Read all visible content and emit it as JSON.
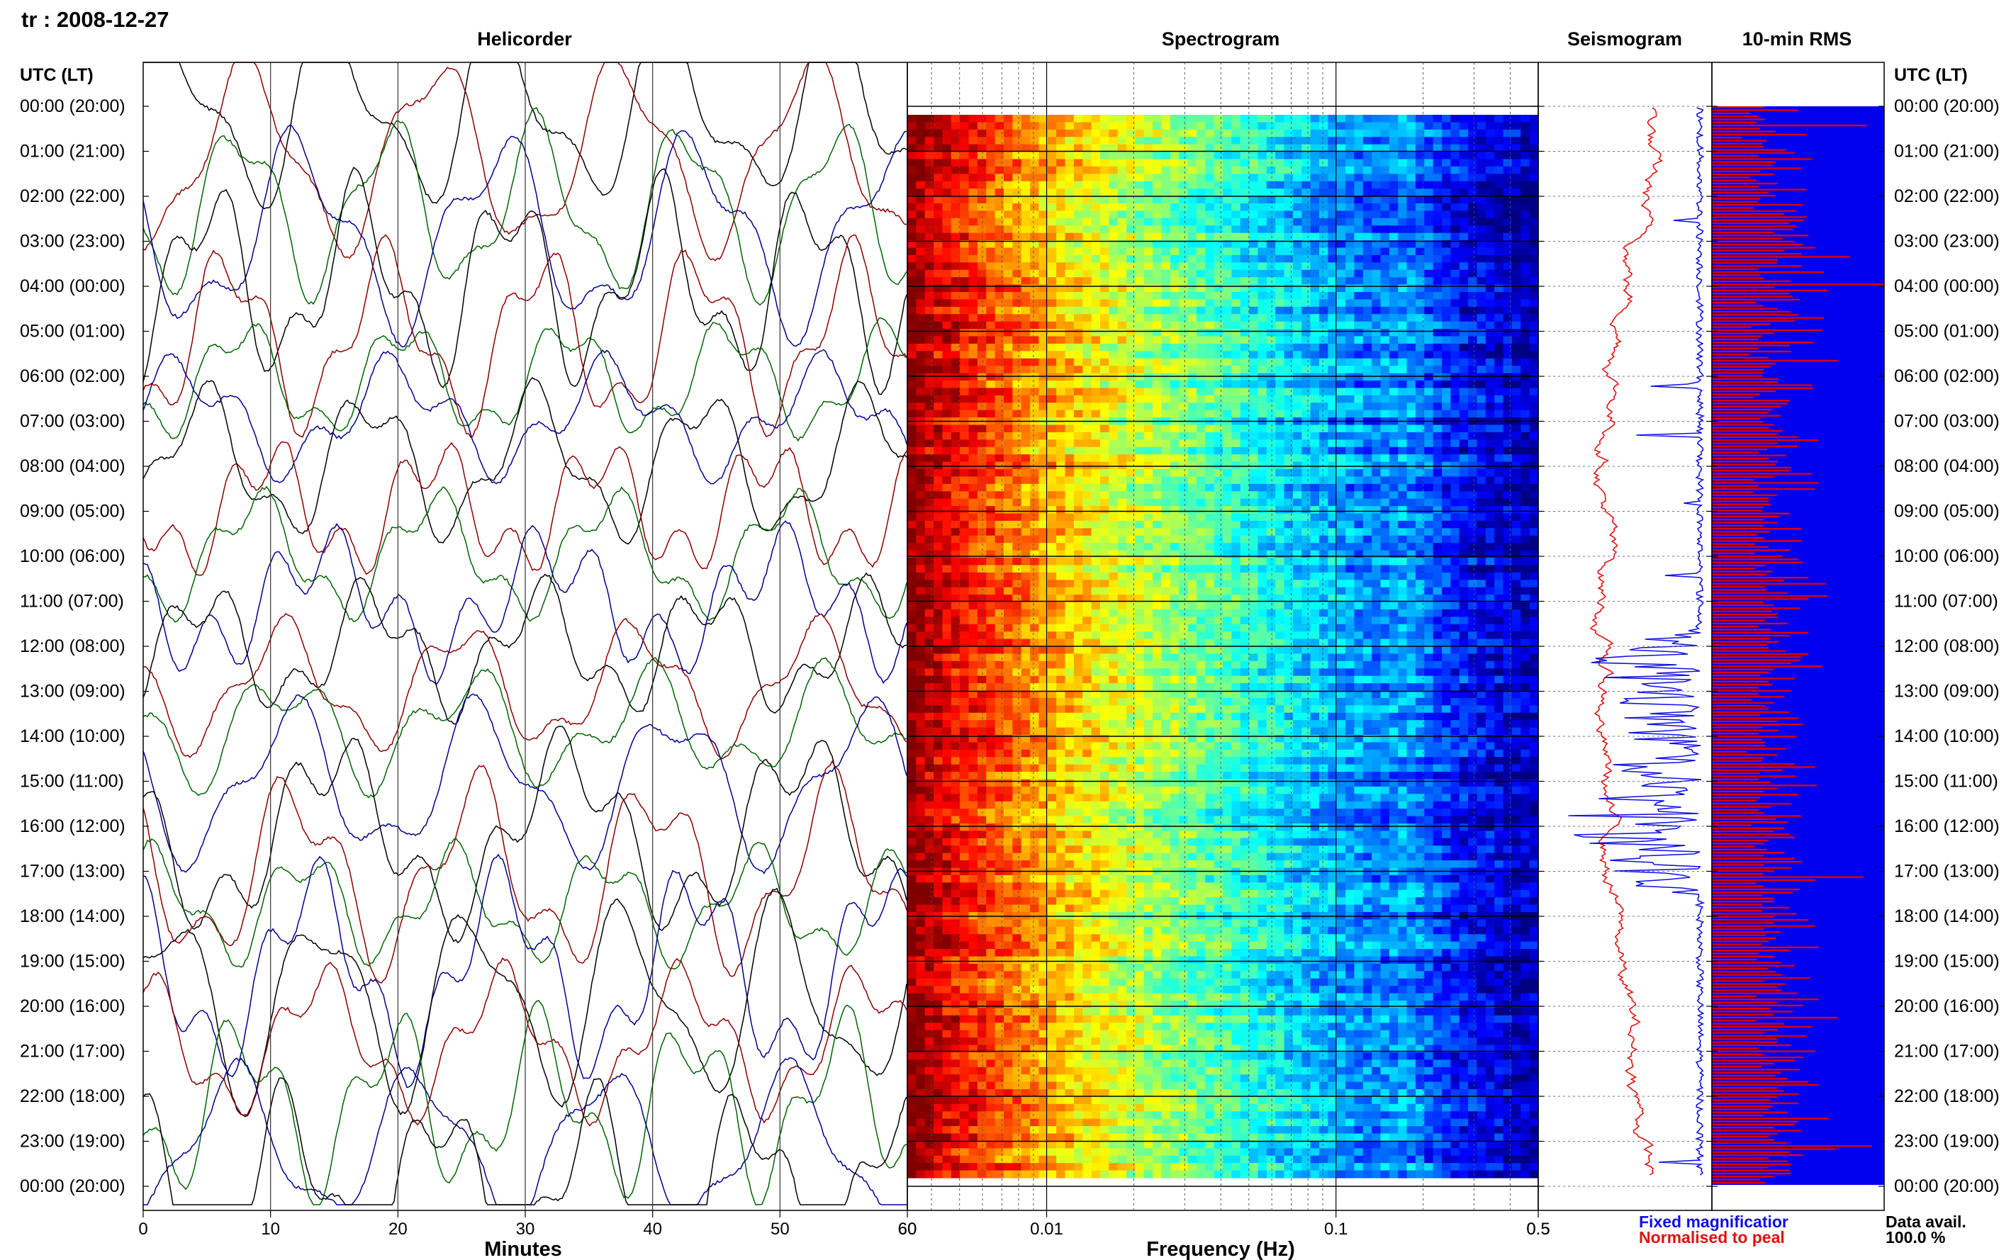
{
  "title": "tr : 2008-12-27",
  "panels": {
    "helicorder": "Helicorder",
    "spectrogram": "Spectrogram",
    "seismogram": "Seismogram",
    "rms": "10-min RMS"
  },
  "time_axis_label_left": "UTC (LT)",
  "time_axis_label_right": "UTC (LT)",
  "hour_labels": [
    "00:00 (20:00)",
    "01:00 (21:00)",
    "02:00 (22:00)",
    "03:00 (23:00)",
    "04:00 (00:00)",
    "05:00 (01:00)",
    "06:00 (02:00)",
    "07:00 (03:00)",
    "08:00 (04:00)",
    "09:00 (05:00)",
    "10:00 (06:00)",
    "11:00 (07:00)",
    "12:00 (08:00)",
    "13:00 (09:00)",
    "14:00 (10:00)",
    "15:00 (11:00)",
    "16:00 (12:00)",
    "17:00 (13:00)",
    "18:00 (14:00)",
    "19:00 (15:00)",
    "20:00 (16:00)",
    "21:00 (17:00)",
    "22:00 (18:00)",
    "23:00 (19:00)",
    "00:00 (20:00)"
  ],
  "legend": {
    "fixed": "Fixed magnificatior",
    "normalised": "Normalised to peal",
    "fixed_color": "#1010e0",
    "normalised_color": "#e01010"
  },
  "data_avail": {
    "label": "Data avail.",
    "value": "100.0 %"
  },
  "colors": {
    "heli_traces": [
      "#000000",
      "#8b0000",
      "#006400",
      "#00008b"
    ],
    "rms_bar": "#e00000",
    "rms_bg": "#0000ee"
  },
  "chart_data": [
    {
      "type": "line",
      "panel": "Helicorder",
      "xlabel": "Minutes",
      "x_ticks": [
        "0",
        "10",
        "20",
        "30",
        "40",
        "50",
        "60"
      ],
      "xlim": [
        0,
        60
      ],
      "rows": 24
    },
    {
      "type": "heatmap",
      "panel": "Spectrogram",
      "xlabel": "Frequency (Hz)",
      "x_scale": "log",
      "x_ticks": [
        "0.01",
        "0.1",
        "0.5"
      ],
      "left_tick_label": "60",
      "xlim": [
        0.0033,
        0.5
      ],
      "colormap": "jet"
    },
    {
      "type": "line",
      "panel": "Seismogram",
      "x_ticks": [
        "0.5"
      ],
      "series": [
        {
          "name": "Fixed magnificatior",
          "color": "#1010e0"
        },
        {
          "name": "Normalised to peal",
          "color": "#e01010"
        }
      ]
    },
    {
      "type": "bar",
      "panel": "10-min RMS",
      "orientation": "horizontal",
      "xlim": [
        0,
        1
      ],
      "values": [
        0.3,
        0.5,
        0.22,
        0.27,
        0.31,
        0.26,
        0.9,
        0.28,
        0.37,
        0.55,
        0.17,
        0.32,
        0.29,
        0.3,
        0.43,
        0.48,
        0.27,
        0.58,
        0.37,
        0.35,
        0.52,
        0.28,
        0.36,
        0.22,
        0.26,
        0.38,
        0.27,
        0.55,
        0.33,
        0.37,
        0.28,
        0.27,
        0.53,
        0.24,
        0.49,
        0.42,
        0.55,
        0.53,
        0.45,
        0.49,
        0.47,
        0.36,
        0.56,
        0.41,
        0.48,
        0.53,
        0.6,
        0.42,
        0.52,
        0.8,
        0.38,
        0.38,
        0.52,
        0.27,
        0.65,
        0.28,
        0.3,
        0.46,
        1.0,
        0.36,
        0.67,
        0.45,
        0.47,
        0.51,
        0.26,
        0.3,
        0.38,
        0.46,
        0.5,
        0.65,
        0.48,
        0.34,
        0.23,
        0.64,
        0.36,
        0.29,
        0.27,
        0.59,
        0.45,
        0.27,
        0.46,
        0.22,
        0.33,
        0.73,
        0.37,
        0.34,
        0.3,
        0.3,
        0.29,
        0.39,
        0.38,
        0.58,
        0.59,
        0.37,
        0.28,
        0.24,
        0.45,
        0.44,
        0.4,
        0.35,
        0.33,
        0.4,
        0.28,
        0.3,
        0.36,
        0.33,
        0.41,
        0.38,
        0.5,
        0.62,
        0.38,
        0.5,
        0.32,
        0.27,
        0.43,
        0.33,
        0.38,
        0.37,
        0.46,
        0.45,
        0.58,
        0.36,
        0.24,
        0.62,
        0.27,
        0.6,
        0.24,
        0.38,
        0.33,
        0.33,
        0.34,
        0.3,
        0.29,
        0.45,
        0.39,
        0.3,
        0.38,
        0.3,
        0.52,
        0.34,
        0.26,
        0.3,
        0.52,
        0.25,
        0.33,
        0.45,
        0.25,
        0.41,
        0.5,
        0.53,
        0.31,
        0.25,
        0.35,
        0.32,
        0.56,
        0.42,
        0.66,
        0.31,
        0.32,
        0.44,
        0.67,
        0.56,
        0.3,
        0.36,
        0.51,
        0.35,
        0.38,
        0.38,
        0.31,
        0.44,
        0.27,
        0.34,
        0.56,
        0.45,
        0.34,
        0.39,
        0.32,
        0.33,
        0.43,
        0.56,
        0.52,
        0.51,
        0.46,
        0.64,
        0.36,
        0.33,
        0.28,
        0.48,
        0.33,
        0.35,
        0.27,
        0.46,
        0.27,
        0.42,
        0.23,
        0.36,
        0.31,
        0.33,
        0.45,
        0.28,
        0.5,
        0.38,
        0.53,
        0.29,
        0.39,
        0.27,
        0.49,
        0.29,
        0.31,
        0.31,
        0.43,
        0.2,
        0.38,
        0.3,
        0.29,
        0.48,
        0.6,
        0.41,
        0.28,
        0.49,
        0.27,
        0.34,
        0.61,
        0.38,
        0.3,
        0.5,
        0.28,
        0.26,
        0.46,
        0.34,
        0.27,
        0.3,
        0.52,
        0.37,
        0.44,
        0.23,
        0.42,
        0.36,
        0.45,
        0.48,
        0.33,
        0.3,
        0.25,
        0.32,
        0.42,
        0.3,
        0.48,
        0.52,
        0.3,
        0.46,
        0.36,
        0.3,
        0.88,
        0.6,
        0.26,
        0.3,
        0.51,
        0.47,
        0.29,
        0.36,
        0.36,
        0.29,
        0.45,
        0.29,
        0.49,
        0.36,
        0.56,
        0.36,
        0.6,
        0.3,
        0.4,
        0.31,
        0.37,
        0.33,
        0.29,
        0.62,
        0.45,
        0.27,
        0.36,
        0.26,
        0.4,
        0.48,
        0.33,
        0.37,
        0.41,
        0.57,
        0.3,
        0.43,
        0.38,
        0.4,
        0.5,
        0.26,
        0.62,
        0.38,
        0.53,
        0.34,
        0.47,
        0.36,
        0.73,
        0.26,
        0.42,
        0.58,
        0.38,
        0.3,
        0.55,
        0.38,
        0.38,
        0.46,
        0.27,
        0.6,
        0.3,
        0.53,
        0.48,
        0.36,
        0.29,
        0.51,
        0.4,
        0.37,
        0.44,
        0.56,
        0.62,
        0.38,
        0.42,
        0.5,
        0.38,
        0.34,
        0.5,
        0.35,
        0.33,
        0.44,
        0.3,
        0.68,
        0.5,
        0.48,
        0.36,
        0.52,
        0.38,
        0.33,
        0.36,
        0.44,
        0.93,
        0.72,
        0.45,
        0.53,
        0.33,
        0.44,
        0.46,
        0.33,
        0.45,
        0.46,
        0.36,
        0.28,
        0.31
      ]
    }
  ]
}
